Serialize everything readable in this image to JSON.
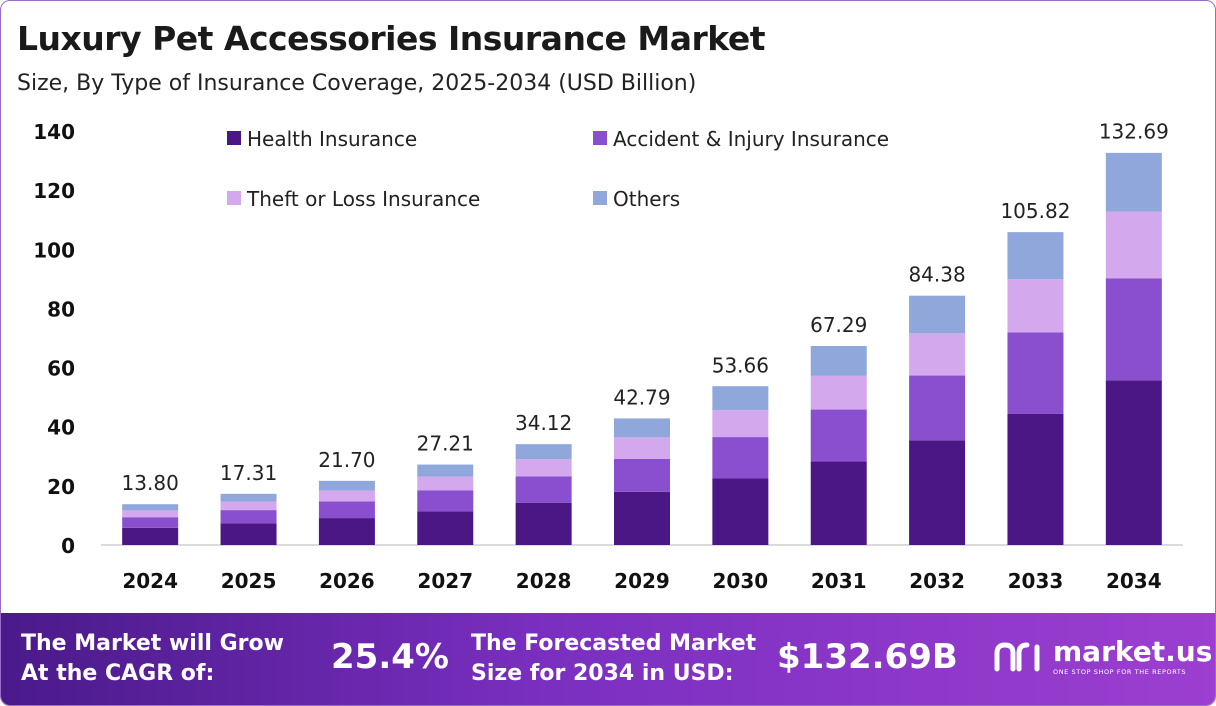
{
  "header": {
    "title": "Luxury Pet Accessories Insurance Market",
    "subtitle": "Size, By Type of Insurance Coverage, 2025-2034 (USD Billion)"
  },
  "chart_data": {
    "type": "bar",
    "stacked": true,
    "categories": [
      "2024",
      "2025",
      "2026",
      "2027",
      "2028",
      "2029",
      "2030",
      "2031",
      "2032",
      "2033",
      "2034"
    ],
    "totals": [
      13.8,
      17.31,
      21.7,
      27.21,
      34.12,
      42.79,
      53.66,
      67.29,
      84.38,
      105.82,
      132.69
    ],
    "total_labels": [
      "13.80",
      "17.31",
      "21.70",
      "27.21",
      "34.12",
      "42.79",
      "53.66",
      "67.29",
      "84.38",
      "105.82",
      "132.69"
    ],
    "series": [
      {
        "name": "Health Insurance",
        "color": "#4b1784",
        "values": [
          5.8,
          7.3,
          9.1,
          11.4,
          14.3,
          18.0,
          22.5,
          28.3,
          35.4,
          44.4,
          55.7
        ]
      },
      {
        "name": "Accident & Injury Insurance",
        "color": "#8a4fcf",
        "values": [
          3.6,
          4.5,
          5.6,
          7.1,
          8.9,
          11.1,
          14.0,
          17.5,
          21.9,
          27.5,
          34.5
        ]
      },
      {
        "name": "Theft or Loss Insurance",
        "color": "#d4a8ec",
        "values": [
          2.3,
          2.9,
          3.7,
          4.6,
          5.8,
          7.3,
          9.1,
          11.4,
          14.3,
          18.0,
          22.5
        ]
      },
      {
        "name": "Others",
        "color": "#8fa7db",
        "values": [
          2.1,
          2.6,
          3.3,
          4.1,
          5.1,
          6.4,
          8.1,
          10.1,
          12.7,
          15.9,
          19.9
        ]
      }
    ],
    "y_ticks": [
      "0",
      "20",
      "40",
      "60",
      "80",
      "100",
      "120",
      "140"
    ],
    "ylim": [
      0,
      140
    ],
    "grid": false,
    "legend_position": "top-left"
  },
  "footer": {
    "cagr_label_line1": "The Market will Grow",
    "cagr_label_line2": "At the CAGR of:",
    "cagr_value": "25.4%",
    "forecast_label_line1": "The Forecasted Market",
    "forecast_label_line2": "Size for 2034 in USD:",
    "forecast_value": "$132.69B",
    "brand_name": "market.us",
    "brand_tagline": "ONE STOP SHOP FOR THE REPORTS"
  }
}
